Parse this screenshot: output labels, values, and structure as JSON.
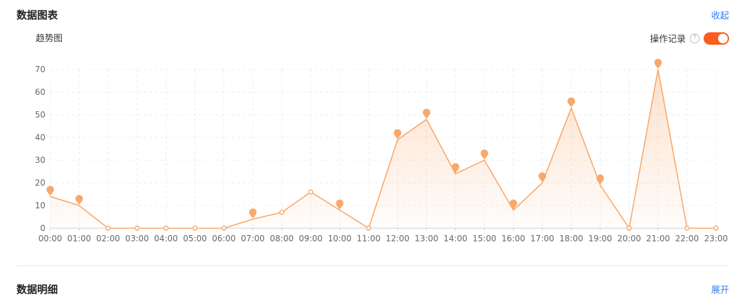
{
  "header": {
    "title": "数据图表",
    "collapse_label": "收起"
  },
  "chart_section": {
    "subtitle": "趋势图",
    "oplog_label": "操作记录",
    "oplog_enabled": true,
    "help_icon": "question-circle-icon"
  },
  "detail": {
    "title": "数据明细",
    "expand_label": "展开"
  },
  "colors": {
    "accent": "#f9a86b",
    "switch_on": "#ff5a1f",
    "link": "#2f7cf6",
    "grid": "#ececec"
  },
  "chart_data": {
    "type": "area",
    "categories": [
      "00:00",
      "01:00",
      "02:00",
      "03:00",
      "04:00",
      "05:00",
      "06:00",
      "07:00",
      "08:00",
      "09:00",
      "10:00",
      "11:00",
      "12:00",
      "13:00",
      "14:00",
      "15:00",
      "16:00",
      "17:00",
      "18:00",
      "19:00",
      "20:00",
      "21:00",
      "22:00",
      "23:00"
    ],
    "values": [
      14,
      10,
      0,
      0,
      0,
      0,
      0,
      4,
      7,
      16,
      8,
      0,
      39,
      48,
      24,
      30,
      8,
      20,
      53,
      19,
      0,
      70,
      0,
      0
    ],
    "markers": [
      {
        "category": "00:00",
        "value": 14
      },
      {
        "category": "01:00",
        "value": 10
      },
      {
        "category": "07:00",
        "value": 4
      },
      {
        "category": "10:00",
        "value": 8
      },
      {
        "category": "12:00",
        "value": 39
      },
      {
        "category": "13:00",
        "value": 48
      },
      {
        "category": "14:00",
        "value": 24
      },
      {
        "category": "15:00",
        "value": 30
      },
      {
        "category": "16:00",
        "value": 8
      },
      {
        "category": "17:00",
        "value": 20
      },
      {
        "category": "18:00",
        "value": 53
      },
      {
        "category": "19:00",
        "value": 19
      },
      {
        "category": "21:00",
        "value": 70
      }
    ],
    "ylim": [
      0,
      70
    ],
    "yticks": [
      0,
      10,
      20,
      30,
      40,
      50,
      60,
      70
    ],
    "grid": true,
    "title": "",
    "xlabel": "",
    "ylabel": ""
  }
}
